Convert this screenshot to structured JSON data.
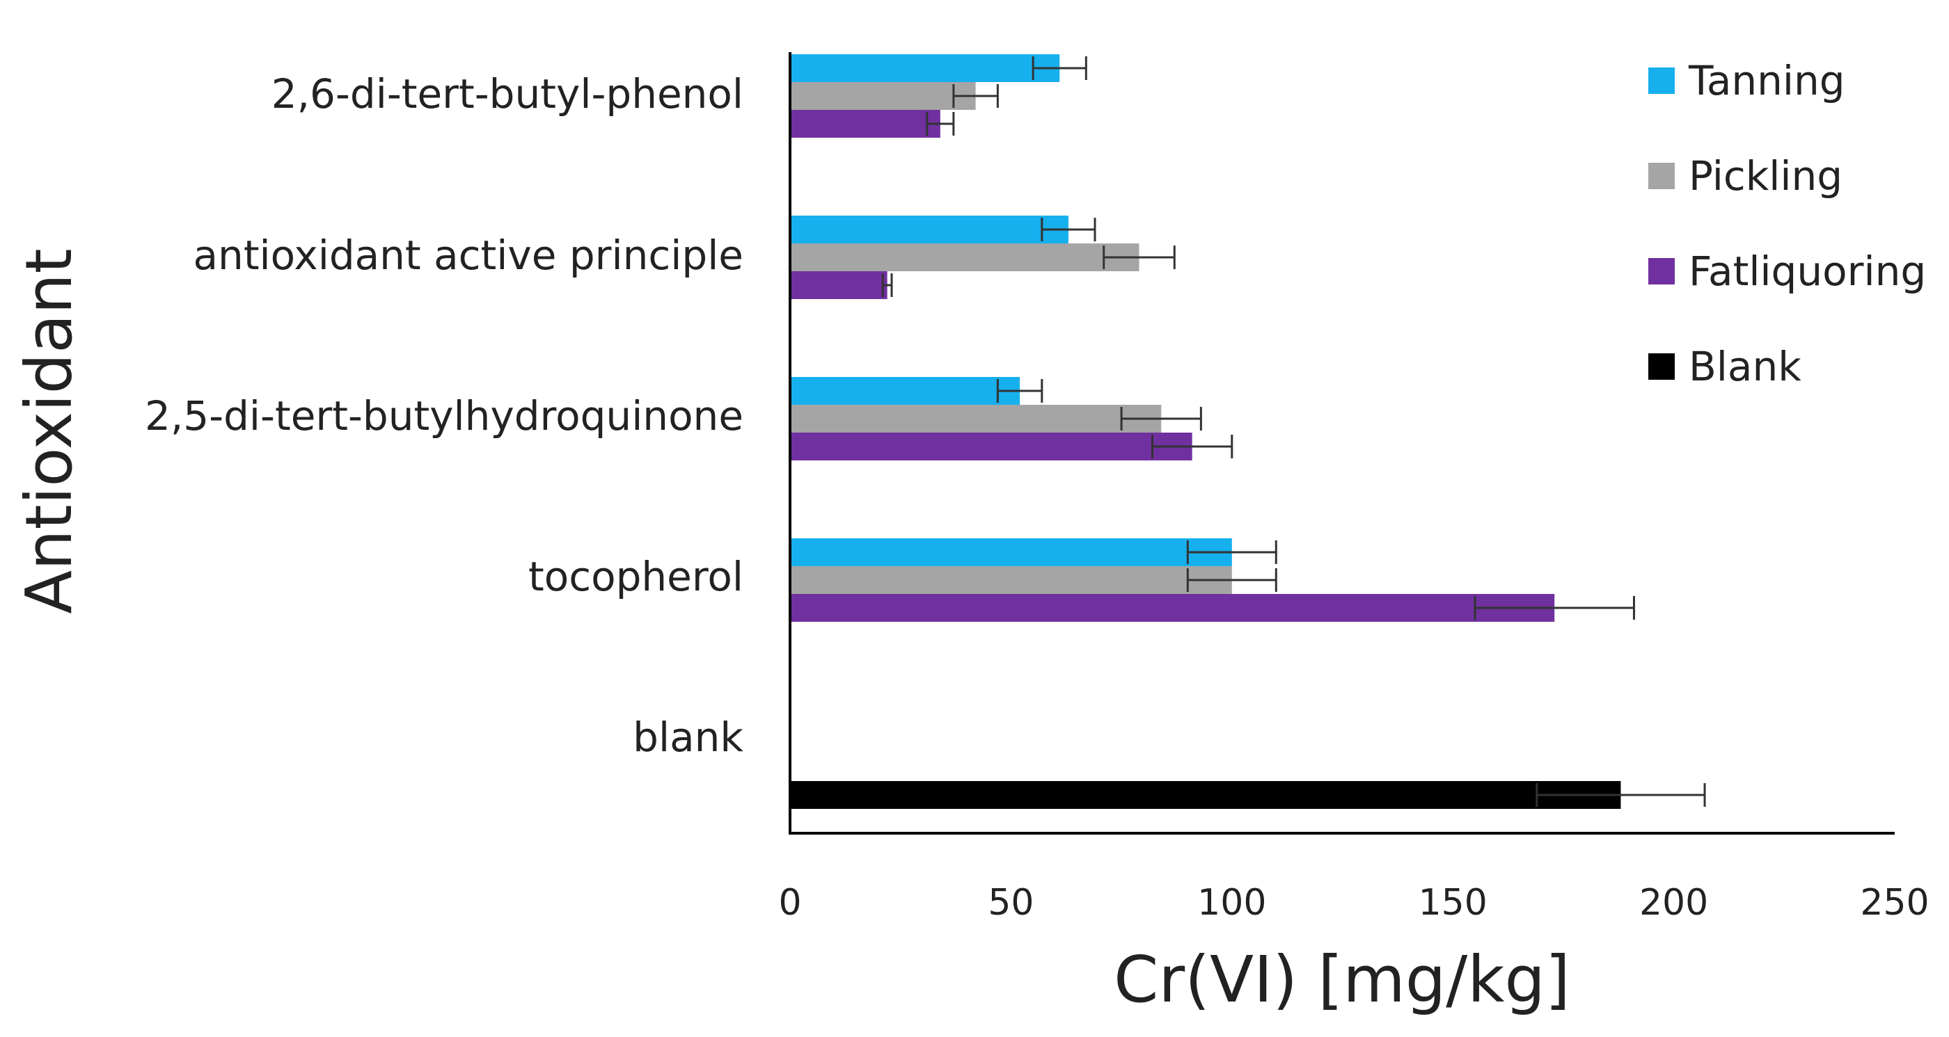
{
  "chart_data": {
    "type": "bar",
    "orientation": "horizontal",
    "title": "",
    "xlabel": "Cr(VI) [mg/kg]",
    "ylabel": "Antioxidant",
    "xlim": [
      0,
      250
    ],
    "xticks": [
      "0",
      "50",
      "100",
      "150",
      "200",
      "250"
    ],
    "grid": false,
    "legend_position": "top-right",
    "categories": [
      "2,6-di-tert-butyl-phenol",
      "antioxidant active principle",
      "2,5-di-tert-butylhydroquinone",
      "tocopherol",
      "blank"
    ],
    "series": [
      {
        "name": "Tanning",
        "color": "#16b0ee",
        "values": [
          61,
          63,
          52,
          100,
          null
        ],
        "errors": [
          6,
          6,
          5,
          10,
          null
        ]
      },
      {
        "name": "Pickling",
        "color": "#a5a5a5",
        "values": [
          42,
          79,
          84,
          100,
          null
        ],
        "errors": [
          5,
          8,
          9,
          10,
          null
        ]
      },
      {
        "name": "Fatliquoring",
        "color": "#7030a0",
        "values": [
          34,
          22,
          91,
          173,
          null
        ],
        "errors": [
          3,
          1,
          9,
          18,
          null
        ]
      },
      {
        "name": "Blank",
        "color": "#000000",
        "values": [
          null,
          null,
          null,
          null,
          188
        ],
        "errors": [
          null,
          null,
          null,
          null,
          19
        ]
      }
    ]
  }
}
